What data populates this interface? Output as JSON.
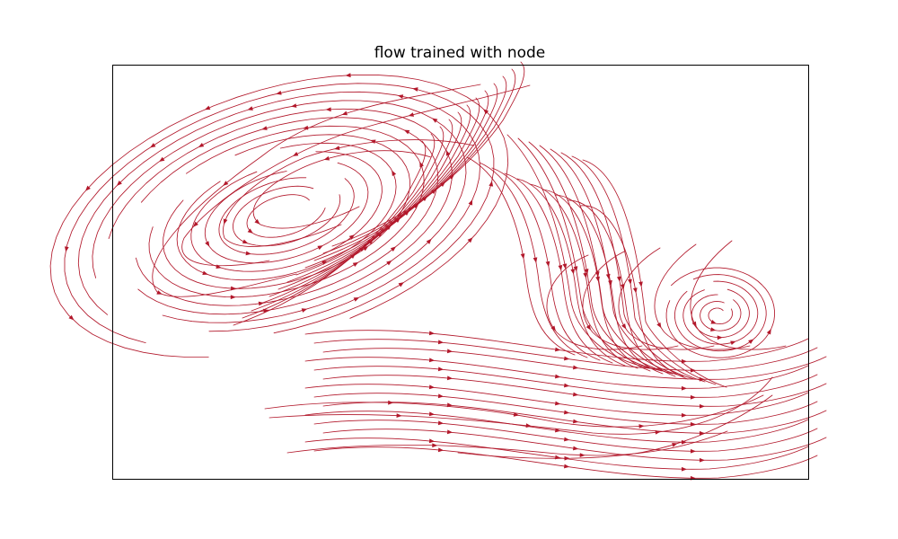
{
  "chart_data": {
    "type": "streamplot",
    "title": "flow trained with node",
    "xlabel": "",
    "ylabel": "",
    "x_ticks": [],
    "y_ticks": [],
    "grid": false,
    "legend": "none",
    "color": "#b2182b",
    "spirals": [
      {
        "name": "upper-left vortex",
        "center": [
          0.25,
          0.63
        ],
        "rotation": "counterclockwise",
        "type": "focus"
      },
      {
        "name": "lower-right vortex",
        "center": [
          0.87,
          0.4
        ],
        "rotation": "counterclockwise",
        "type": "focus"
      }
    ],
    "general_flow": "left-to-right along the lower band, swirling upward-left in the upper region"
  }
}
